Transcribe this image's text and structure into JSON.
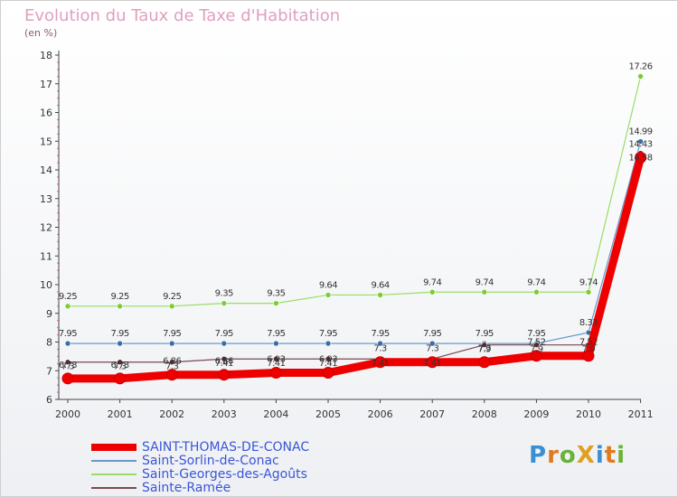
{
  "chart_data": {
    "type": "line",
    "title": "Evolution du Taux de Taxe d'Habitation",
    "ylabel": "(en %)",
    "xlabel": "",
    "categories": [
      "2000",
      "2001",
      "2002",
      "2003",
      "2004",
      "2005",
      "2006",
      "2007",
      "2008",
      "2009",
      "2010",
      "2011"
    ],
    "y_ticks": [
      "6",
      "7",
      "8",
      "9",
      "10",
      "11",
      "12",
      "13",
      "14",
      "15",
      "16",
      "17",
      "18"
    ],
    "ylim": [
      6,
      18
    ],
    "grid": false,
    "series": [
      {
        "name": "SAINT-THOMAS-DE-CONAC",
        "color": "#ee0000",
        "values": [
          6.73,
          6.73,
          6.86,
          6.86,
          6.93,
          6.93,
          7.3,
          7.3,
          7.3,
          7.52,
          7.52,
          14.43
        ],
        "labels": [
          "6.73",
          "6.73",
          "6.86",
          "6.86",
          "6.93",
          "6.93",
          "7.3",
          "7.3",
          "7.3",
          "7.52",
          "7.52",
          "14.43"
        ]
      },
      {
        "name": "Saint-Sorlin-de-Conac",
        "color": "#6699cc",
        "values": [
          7.95,
          7.95,
          7.95,
          7.95,
          7.95,
          7.95,
          7.95,
          7.95,
          7.95,
          7.95,
          8.33,
          14.99
        ],
        "labels": [
          "7.95",
          "7.95",
          "7.95",
          "7.95",
          "7.95",
          "7.95",
          "7.95",
          "7.95",
          "7.95",
          "7.95",
          "8.33",
          "14.99"
        ]
      },
      {
        "name": "Saint-Georges-des-Agoûts",
        "color": "#99dd66",
        "values": [
          9.25,
          9.25,
          9.25,
          9.35,
          9.35,
          9.64,
          9.64,
          9.74,
          9.74,
          9.74,
          9.74,
          17.26
        ],
        "labels": [
          "9.25",
          "9.25",
          "9.25",
          "9.35",
          "9.35",
          "9.64",
          "9.64",
          "9.74",
          "9.74",
          "9.74",
          "9.74",
          "17.26"
        ]
      },
      {
        "name": "Sainte-Ramée",
        "color": "#7a4a52",
        "values": [
          7.3,
          7.3,
          7.3,
          7.41,
          7.41,
          7.41,
          7.41,
          7.41,
          7.9,
          7.9,
          7.9,
          14.58
        ],
        "labels": [
          "7.3",
          "7.3",
          "7.3",
          "7.41",
          "7.41",
          "7.41",
          "7.41",
          "7.41",
          "7.9",
          "7.9",
          "7.9",
          "14.58"
        ]
      }
    ]
  },
  "brand": {
    "text": "ProXiti"
  }
}
